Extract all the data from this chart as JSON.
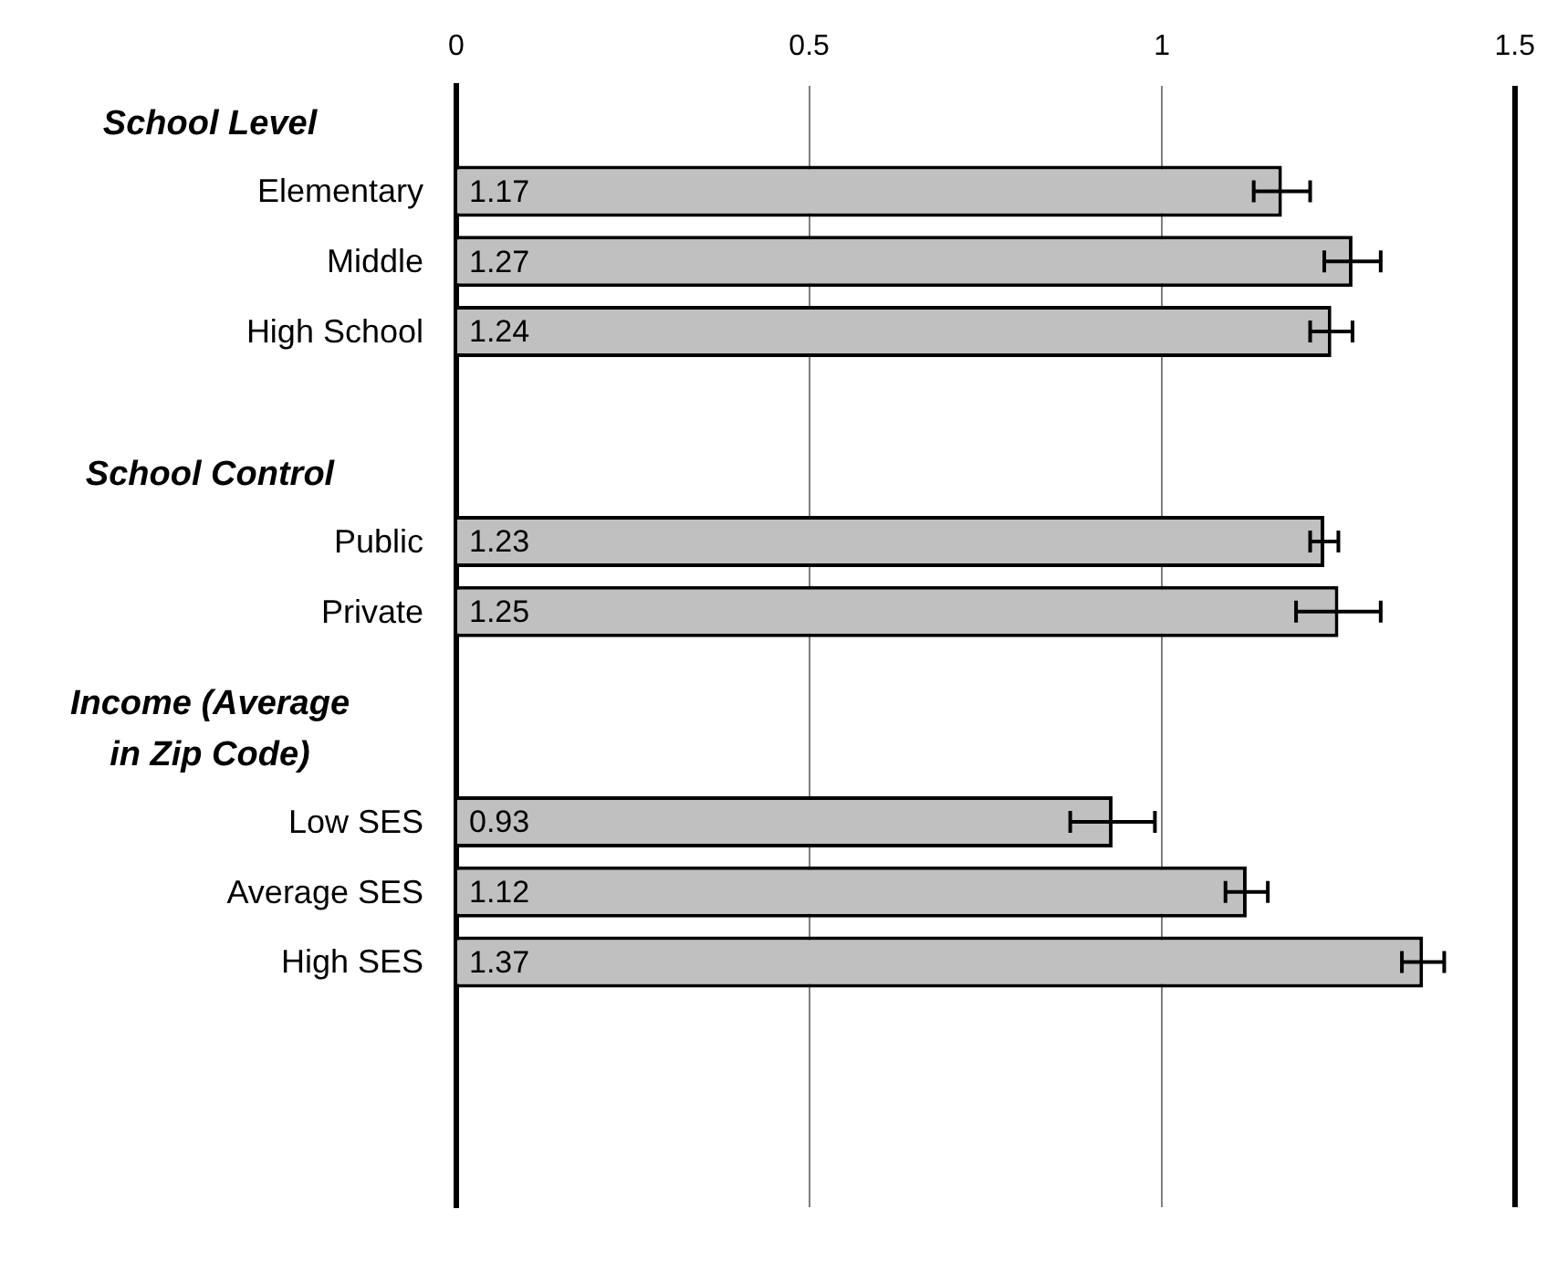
{
  "chart_data": {
    "type": "bar",
    "orientation": "horizontal",
    "categories": [
      null,
      "Elementary",
      "Middle",
      "High School",
      null,
      null,
      "Public",
      "Private",
      null,
      null,
      "Low SES",
      "Average SES",
      "High SES",
      null,
      null,
      null
    ],
    "annotations": [
      "School Level",
      "School Control",
      "Income (Average in Zip Code)"
    ],
    "values": [
      null,
      1.17,
      1.27,
      1.24,
      null,
      null,
      1.23,
      1.25,
      null,
      null,
      0.93,
      1.12,
      1.37,
      null,
      null,
      null
    ],
    "errors": [
      null,
      0.04,
      0.04,
      0.03,
      null,
      null,
      0.02,
      0.06,
      null,
      null,
      0.06,
      0.03,
      0.03,
      null,
      null,
      null
    ],
    "color": "#c0c0c0",
    "xlim": [
      0,
      1.5
    ],
    "xticks": [
      0,
      0.5,
      1,
      1.5
    ],
    "grid": "x",
    "legend": false,
    "data_labels": true
  }
}
